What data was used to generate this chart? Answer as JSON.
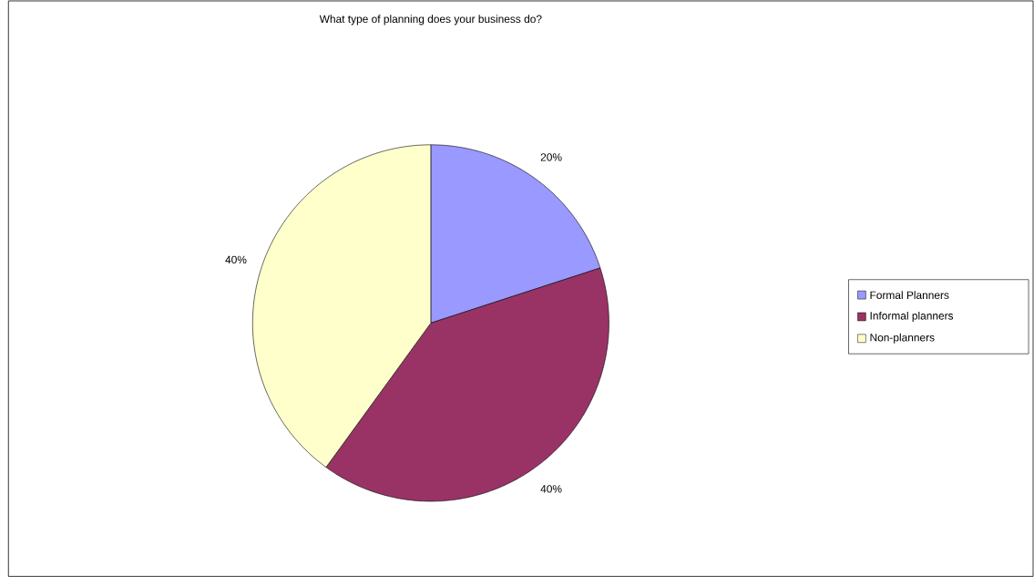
{
  "chart_data": {
    "type": "pie",
    "title": "What type of planning does your business do?",
    "categories": [
      "Formal Planners",
      "Informal planners",
      "Non-planners"
    ],
    "values": [
      20,
      40,
      40
    ],
    "colors": [
      "#9999ff",
      "#993366",
      "#ffffcc"
    ],
    "value_labels": [
      "20%",
      "40%",
      "40%"
    ],
    "legend": "right"
  }
}
